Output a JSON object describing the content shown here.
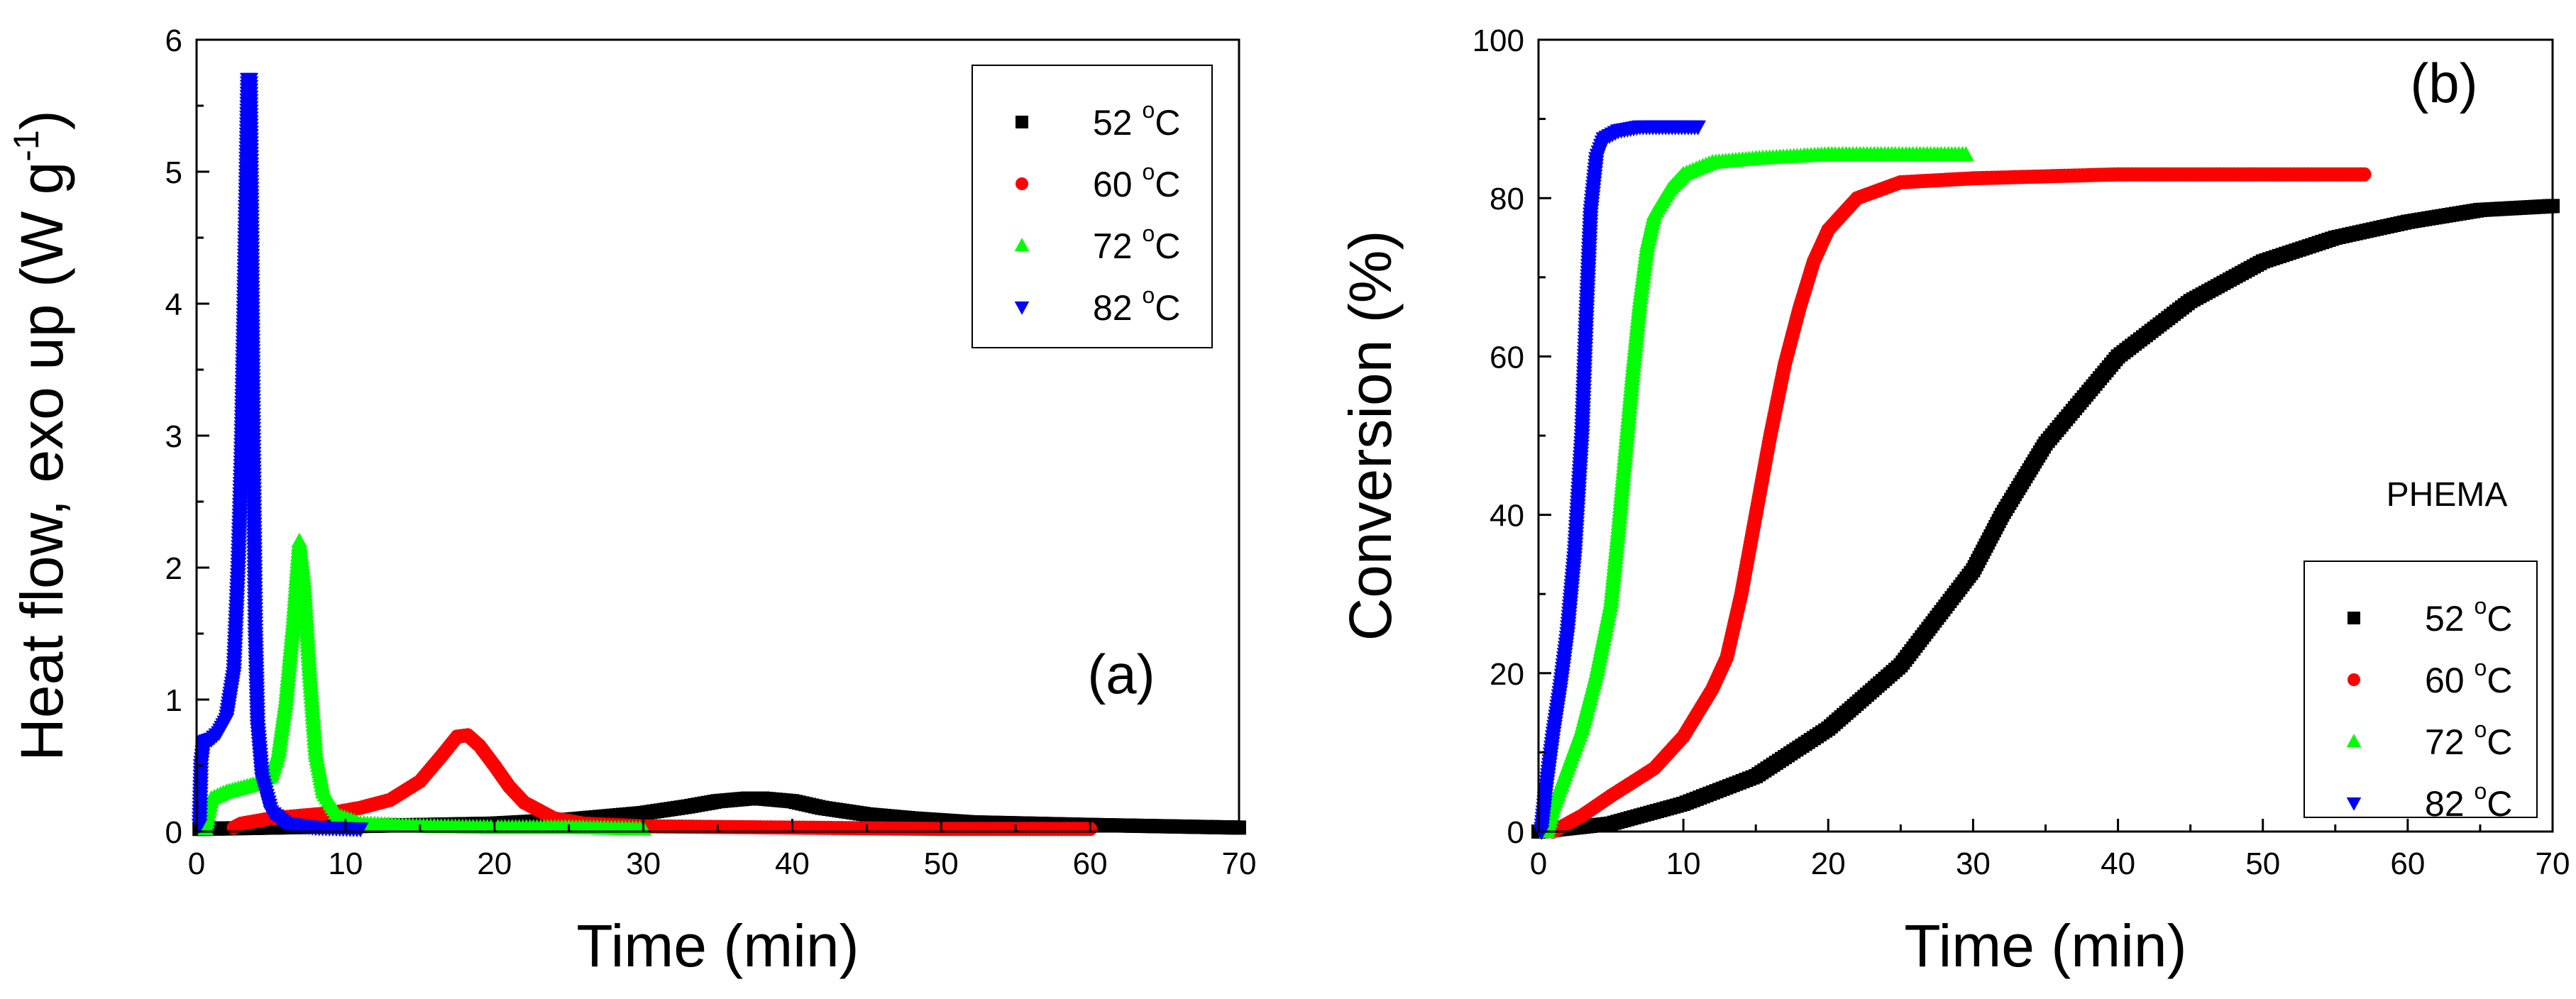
{
  "chart_data": [
    {
      "type": "scatter",
      "panel_label": "(a)",
      "title": "",
      "xlabel": "Time (min)",
      "ylabel": "Heat flow, exo up (W g-1)",
      "ylabel_parts": {
        "main": "Heat flow, exo up (W g",
        "sup": "-1",
        "close": ")"
      },
      "xlim": [
        0,
        70
      ],
      "ylim": [
        0,
        6
      ],
      "xticks": [
        0,
        10,
        20,
        30,
        40,
        50,
        60,
        70
      ],
      "yticks": [
        0,
        1,
        2,
        3,
        4,
        5,
        6
      ],
      "legend_position": "top-right",
      "series": [
        {
          "name": "52 °C",
          "temp": "52",
          "unit": "C",
          "marker": "square",
          "color": "#000000",
          "points": [
            [
              0.2,
              0.02
            ],
            [
              5,
              0.03
            ],
            [
              10,
              0.04
            ],
            [
              15,
              0.05
            ],
            [
              20,
              0.06
            ],
            [
              25,
              0.09
            ],
            [
              30,
              0.14
            ],
            [
              33,
              0.19
            ],
            [
              35,
              0.23
            ],
            [
              37,
              0.25
            ],
            [
              38,
              0.25
            ],
            [
              40,
              0.23
            ],
            [
              42,
              0.18
            ],
            [
              45,
              0.13
            ],
            [
              48,
              0.1
            ],
            [
              52,
              0.07
            ],
            [
              56,
              0.06
            ],
            [
              60,
              0.05
            ],
            [
              65,
              0.04
            ],
            [
              70,
              0.03
            ]
          ]
        },
        {
          "name": "60 °C",
          "temp": "60",
          "unit": "C",
          "marker": "circle",
          "color": "#ff0000",
          "points": [
            [
              2.5,
              0.03
            ],
            [
              3,
              0.06
            ],
            [
              5,
              0.1
            ],
            [
              7,
              0.12
            ],
            [
              9,
              0.14
            ],
            [
              11,
              0.18
            ],
            [
              13,
              0.24
            ],
            [
              15,
              0.38
            ],
            [
              16.5,
              0.58
            ],
            [
              17.5,
              0.72
            ],
            [
              18.2,
              0.73
            ],
            [
              19,
              0.65
            ],
            [
              20,
              0.5
            ],
            [
              21,
              0.34
            ],
            [
              22,
              0.22
            ],
            [
              24,
              0.1
            ],
            [
              26,
              0.06
            ],
            [
              30,
              0.04
            ],
            [
              40,
              0.03
            ],
            [
              50,
              0.02
            ],
            [
              60,
              0.02
            ]
          ]
        },
        {
          "name": "72 °C",
          "temp": "72",
          "unit": "C",
          "marker": "triangle-up",
          "color": "#00ff00",
          "points": [
            [
              0.6,
              0.02
            ],
            [
              0.8,
              0.15
            ],
            [
              1,
              0.25
            ],
            [
              2,
              0.3
            ],
            [
              3,
              0.33
            ],
            [
              4,
              0.36
            ],
            [
              5,
              0.42
            ],
            [
              5.5,
              0.6
            ],
            [
              6,
              1.0
            ],
            [
              6.5,
              1.6
            ],
            [
              6.9,
              2.2
            ],
            [
              7.2,
              1.9
            ],
            [
              7.6,
              1.2
            ],
            [
              8,
              0.6
            ],
            [
              8.5,
              0.3
            ],
            [
              9.5,
              0.12
            ],
            [
              11,
              0.06
            ],
            [
              15,
              0.04
            ],
            [
              20,
              0.03
            ],
            [
              25,
              0.03
            ],
            [
              30,
              0.02
            ]
          ]
        },
        {
          "name": "82 °C",
          "temp": "82",
          "unit": "C",
          "marker": "triangle-down",
          "color": "#0000ff",
          "points": [
            [
              0.2,
              0.05
            ],
            [
              0.3,
              0.5
            ],
            [
              0.5,
              0.68
            ],
            [
              1,
              0.7
            ],
            [
              1.5,
              0.75
            ],
            [
              2,
              0.85
            ],
            [
              2.5,
              1.2
            ],
            [
              2.8,
              2.0
            ],
            [
              3,
              2.8
            ],
            [
              3.2,
              4.0
            ],
            [
              3.35,
              5.0
            ],
            [
              3.45,
              5.7
            ],
            [
              3.6,
              5.7
            ],
            [
              3.7,
              4.5
            ],
            [
              3.8,
              3.0
            ],
            [
              3.95,
              1.5
            ],
            [
              4.1,
              0.8
            ],
            [
              4.4,
              0.4
            ],
            [
              5,
              0.15
            ],
            [
              6,
              0.06
            ],
            [
              8,
              0.03
            ],
            [
              11,
              0.02
            ]
          ]
        }
      ]
    },
    {
      "type": "scatter",
      "panel_label": "(b)",
      "title": "",
      "xlabel": "Time (min)",
      "ylabel": "Conversion (%)",
      "annotation": "PHEMA",
      "xlim": [
        0,
        70
      ],
      "ylim": [
        0,
        100
      ],
      "xticks": [
        0,
        10,
        20,
        30,
        40,
        50,
        60,
        70
      ],
      "yticks": [
        0,
        20,
        40,
        60,
        80,
        100
      ],
      "legend_position": "bottom-right",
      "series": [
        {
          "name": "52 °C",
          "temp": "52",
          "unit": "C",
          "marker": "square",
          "color": "#000000",
          "points": [
            [
              0,
              0
            ],
            [
              5,
              1
            ],
            [
              10,
              3.5
            ],
            [
              15,
              7
            ],
            [
              20,
              13
            ],
            [
              25,
              21
            ],
            [
              30,
              33
            ],
            [
              32,
              40
            ],
            [
              35,
              49
            ],
            [
              40,
              60
            ],
            [
              45,
              67
            ],
            [
              50,
              72
            ],
            [
              55,
              75
            ],
            [
              60,
              77
            ],
            [
              65,
              78.5
            ],
            [
              70,
              79
            ]
          ]
        },
        {
          "name": "60 °C",
          "temp": "60",
          "unit": "C",
          "marker": "circle",
          "color": "#ff0000",
          "points": [
            [
              1,
              0
            ],
            [
              3,
              2
            ],
            [
              5,
              4.5
            ],
            [
              8,
              8
            ],
            [
              10,
              12
            ],
            [
              12,
              18
            ],
            [
              13,
              22
            ],
            [
              14,
              30
            ],
            [
              15,
              40
            ],
            [
              16,
              50
            ],
            [
              17,
              59
            ],
            [
              18,
              66
            ],
            [
              19,
              72
            ],
            [
              20,
              76
            ],
            [
              22,
              80
            ],
            [
              25,
              82
            ],
            [
              30,
              82.5
            ],
            [
              40,
              83
            ],
            [
              57,
              83
            ]
          ]
        },
        {
          "name": "72 °C",
          "temp": "72",
          "unit": "C",
          "marker": "triangle-up",
          "color": "#00ff00",
          "points": [
            [
              0.6,
              0
            ],
            [
              1,
              3
            ],
            [
              2,
              8
            ],
            [
              3,
              13
            ],
            [
              4,
              20
            ],
            [
              5,
              29
            ],
            [
              5.5,
              38
            ],
            [
              6,
              48
            ],
            [
              6.5,
              58
            ],
            [
              7,
              67
            ],
            [
              7.5,
              74
            ],
            [
              8,
              78
            ],
            [
              9,
              81
            ],
            [
              10,
              83
            ],
            [
              12,
              84.5
            ],
            [
              15,
              85
            ],
            [
              20,
              85.5
            ],
            [
              29.5,
              85.5
            ]
          ]
        },
        {
          "name": "82 °C",
          "temp": "82",
          "unit": "C",
          "marker": "triangle-down",
          "color": "#0000ff",
          "points": [
            [
              0.2,
              0
            ],
            [
              0.5,
              5
            ],
            [
              1,
              12
            ],
            [
              1.5,
              18
            ],
            [
              2,
              25
            ],
            [
              2.5,
              35
            ],
            [
              3,
              50
            ],
            [
              3.3,
              65
            ],
            [
              3.6,
              78
            ],
            [
              4,
              85
            ],
            [
              4.5,
              87.5
            ],
            [
              5.5,
              88.5
            ],
            [
              7,
              89
            ],
            [
              9,
              89
            ],
            [
              11,
              89
            ]
          ]
        }
      ]
    }
  ]
}
